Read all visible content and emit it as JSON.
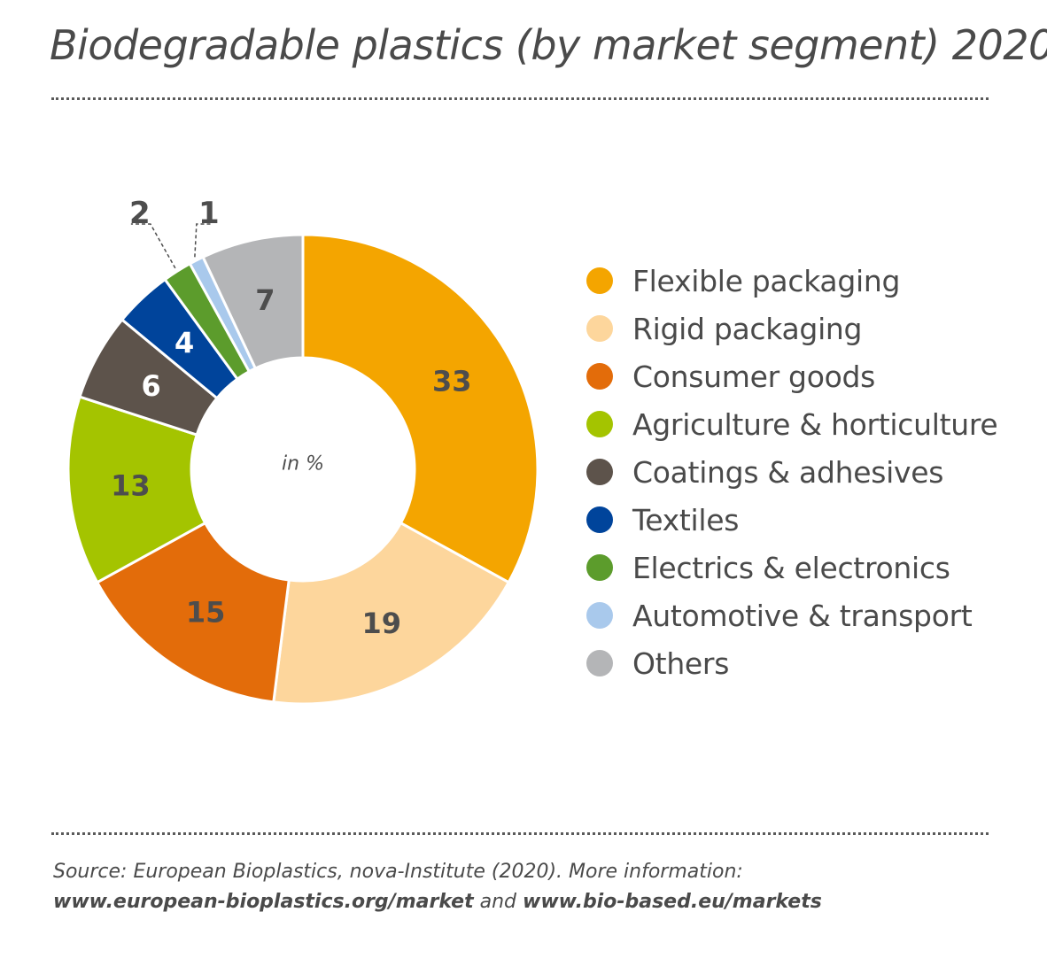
{
  "title": "Biodegradable plastics (by market segment) 2020",
  "chart_data": {
    "type": "pie",
    "title": "Biodegradable plastics (by market segment) 2020",
    "center_label": "in %",
    "categories": [
      "Flexible packaging",
      "Rigid packaging",
      "Consumer goods",
      "Agriculture & horticulture",
      "Coatings & adhesives",
      "Textiles",
      "Electrics & electronics",
      "Automotive & transport",
      "Others"
    ],
    "values": [
      33,
      19,
      15,
      13,
      6,
      4,
      2,
      1,
      7
    ],
    "data_labels": [
      "33",
      "19",
      "15",
      "13",
      "6",
      "4",
      "2",
      "1",
      "7"
    ],
    "colors": [
      "#f4a500",
      "#fdd69c",
      "#e36c0a",
      "#a4c400",
      "#5d534b",
      "#00449b",
      "#5c9c2c",
      "#a9c9ec",
      "#b4b5b7"
    ],
    "label_colors": [
      "#4d4d4d",
      "#4d4d4d",
      "#4d4d4d",
      "#4d4d4d",
      "#ffffff",
      "#ffffff",
      "#4d4d4d",
      "#4d4d4d",
      "#4d4d4d"
    ],
    "legend_position": "right",
    "donut": true
  },
  "source": {
    "line1": "Source: European Bioplastics, nova-Institute (2020). More information:",
    "link1": "www.european-bioplastics.org/market",
    "and": " and ",
    "link2": "www.bio-based.eu/markets"
  }
}
